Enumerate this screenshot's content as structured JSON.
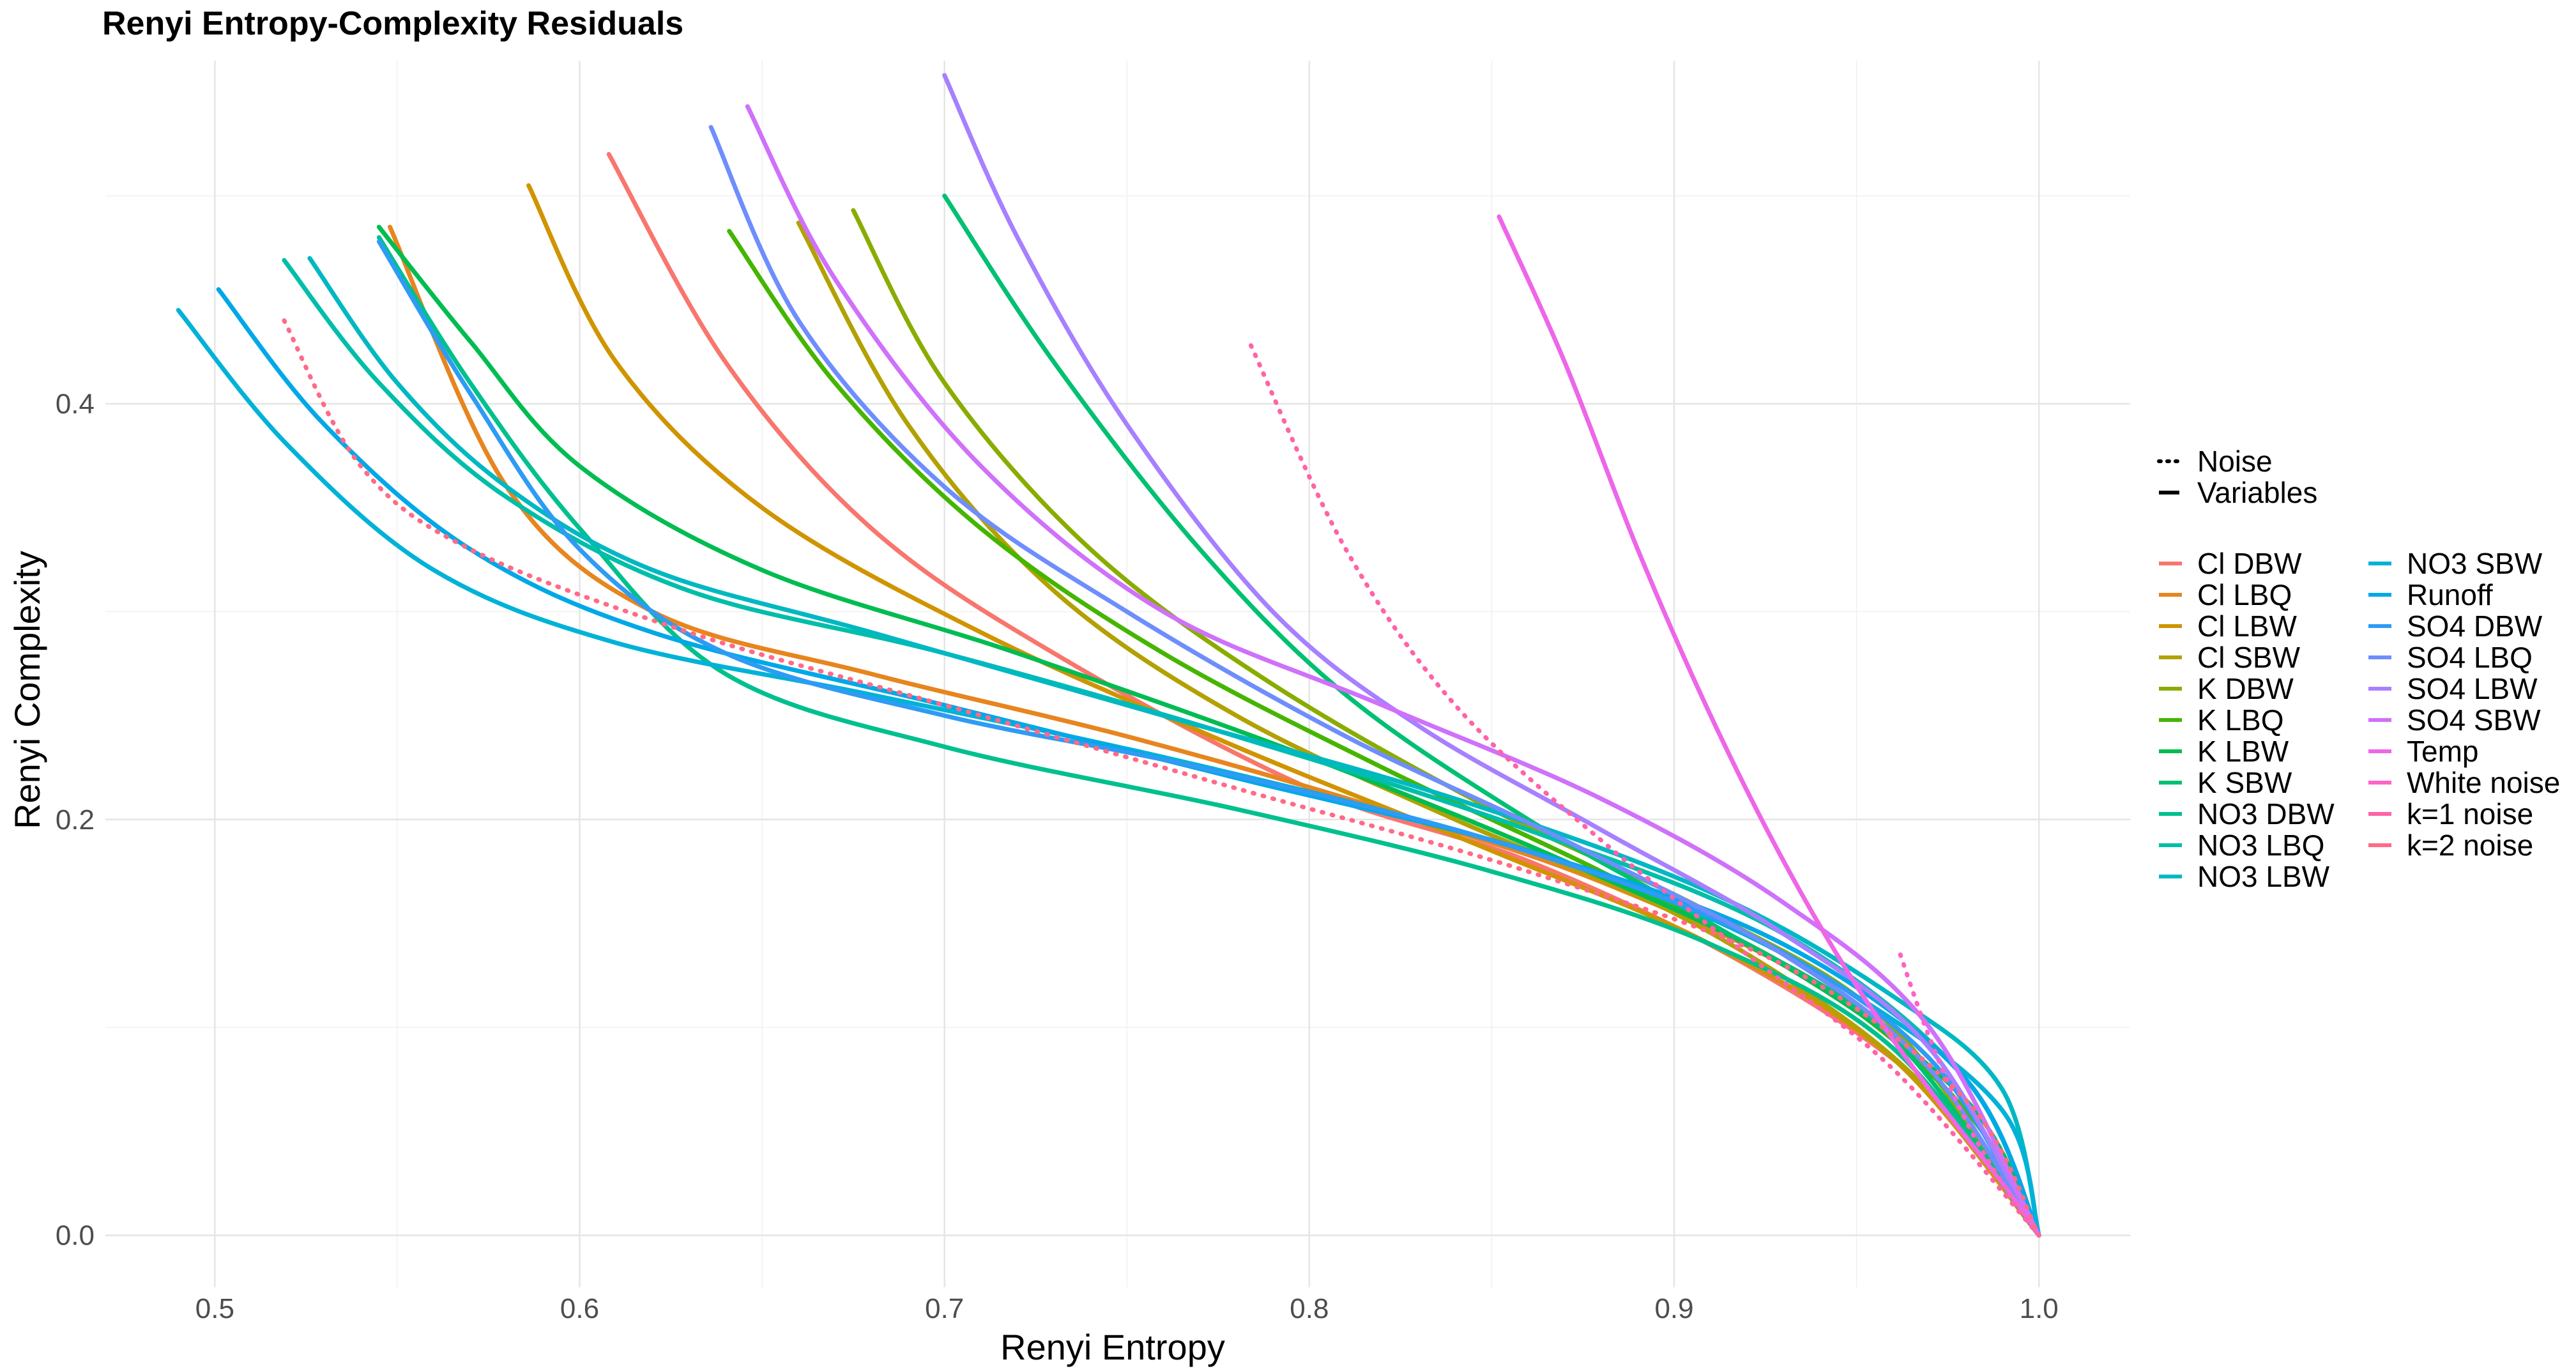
{
  "chart_data": {
    "type": "line",
    "title": "Renyi Entropy-Complexity Residuals",
    "xlabel": "Renyi Entropy",
    "ylabel": "Renyi Complexity",
    "xlim": [
      0.47,
      1.025
    ],
    "ylim": [
      -0.025,
      0.565
    ],
    "x_ticks": [
      0.5,
      0.6,
      0.7,
      0.8,
      0.9,
      1.0
    ],
    "x_tick_labels": [
      "0.5",
      "0.6",
      "0.7",
      "0.8",
      "0.9",
      "1.0"
    ],
    "y_ticks": [
      0.0,
      0.2,
      0.4
    ],
    "y_tick_labels": [
      "0.0",
      "0.2",
      "0.4"
    ],
    "grid": true,
    "linetype_legend": [
      {
        "label": "Noise",
        "style": "dotted"
      },
      {
        "label": "Variables",
        "style": "solid"
      }
    ],
    "series": [
      {
        "name": "Cl DBW",
        "color": "#F8766D",
        "style": "solid",
        "points": [
          [
            0.608,
            0.52
          ],
          [
            0.64,
            0.42
          ],
          [
            0.68,
            0.34
          ],
          [
            0.73,
            0.28
          ],
          [
            0.8,
            0.215
          ],
          [
            0.86,
            0.18
          ],
          [
            0.92,
            0.13
          ],
          [
            0.97,
            0.07
          ],
          [
            1.0,
            0.0
          ]
        ]
      },
      {
        "name": "Cl LBQ",
        "color": "#E7851E",
        "style": "solid",
        "points": [
          [
            0.548,
            0.485
          ],
          [
            0.58,
            0.36
          ],
          [
            0.62,
            0.3
          ],
          [
            0.68,
            0.27
          ],
          [
            0.75,
            0.24
          ],
          [
            0.82,
            0.205
          ],
          [
            0.88,
            0.17
          ],
          [
            0.94,
            0.12
          ],
          [
            0.98,
            0.06
          ],
          [
            1.0,
            0.0
          ]
        ]
      },
      {
        "name": "Cl LBW",
        "color": "#D09400",
        "style": "solid",
        "points": [
          [
            0.586,
            0.505
          ],
          [
            0.61,
            0.42
          ],
          [
            0.65,
            0.35
          ],
          [
            0.71,
            0.29
          ],
          [
            0.78,
            0.235
          ],
          [
            0.85,
            0.185
          ],
          [
            0.91,
            0.14
          ],
          [
            0.96,
            0.085
          ],
          [
            1.0,
            0.0
          ]
        ]
      },
      {
        "name": "Cl SBW",
        "color": "#B2A100",
        "style": "solid",
        "points": [
          [
            0.66,
            0.487
          ],
          [
            0.69,
            0.39
          ],
          [
            0.73,
            0.31
          ],
          [
            0.78,
            0.25
          ],
          [
            0.84,
            0.2
          ],
          [
            0.9,
            0.155
          ],
          [
            0.95,
            0.1
          ],
          [
            0.98,
            0.05
          ],
          [
            1.0,
            0.0
          ]
        ]
      },
      {
        "name": "K DBW",
        "color": "#89AC00",
        "style": "solid",
        "points": [
          [
            0.675,
            0.493
          ],
          [
            0.7,
            0.41
          ],
          [
            0.74,
            0.33
          ],
          [
            0.79,
            0.265
          ],
          [
            0.85,
            0.205
          ],
          [
            0.91,
            0.155
          ],
          [
            0.96,
            0.1
          ],
          [
            1.0,
            0.0
          ]
        ]
      },
      {
        "name": "K LBQ",
        "color": "#45B500",
        "style": "solid",
        "points": [
          [
            0.641,
            0.483
          ],
          [
            0.67,
            0.41
          ],
          [
            0.71,
            0.34
          ],
          [
            0.76,
            0.28
          ],
          [
            0.82,
            0.225
          ],
          [
            0.88,
            0.175
          ],
          [
            0.94,
            0.12
          ],
          [
            0.98,
            0.06
          ],
          [
            1.0,
            0.0
          ]
        ]
      },
      {
        "name": "K LBW",
        "color": "#00BC51",
        "style": "solid",
        "points": [
          [
            0.545,
            0.485
          ],
          [
            0.57,
            0.43
          ],
          [
            0.6,
            0.37
          ],
          [
            0.65,
            0.32
          ],
          [
            0.72,
            0.28
          ],
          [
            0.8,
            0.23
          ],
          [
            0.87,
            0.18
          ],
          [
            0.93,
            0.13
          ],
          [
            0.98,
            0.065
          ],
          [
            1.0,
            0.0
          ]
        ]
      },
      {
        "name": "K SBW",
        "color": "#00C071",
        "style": "solid",
        "points": [
          [
            0.7,
            0.5
          ],
          [
            0.73,
            0.42
          ],
          [
            0.77,
            0.33
          ],
          [
            0.81,
            0.26
          ],
          [
            0.86,
            0.2
          ],
          [
            0.91,
            0.15
          ],
          [
            0.96,
            0.095
          ],
          [
            1.0,
            0.0
          ]
        ]
      },
      {
        "name": "NO3 DBW",
        "color": "#00C08E",
        "style": "solid",
        "points": [
          [
            0.545,
            0.48
          ],
          [
            0.57,
            0.41
          ],
          [
            0.6,
            0.34
          ],
          [
            0.64,
            0.27
          ],
          [
            0.7,
            0.235
          ],
          [
            0.78,
            0.205
          ],
          [
            0.85,
            0.175
          ],
          [
            0.91,
            0.14
          ],
          [
            0.96,
            0.09
          ],
          [
            1.0,
            0.0
          ]
        ]
      },
      {
        "name": "NO3 LBQ",
        "color": "#00BEA9",
        "style": "solid",
        "points": [
          [
            0.519,
            0.469
          ],
          [
            0.545,
            0.41
          ],
          [
            0.58,
            0.355
          ],
          [
            0.63,
            0.31
          ],
          [
            0.7,
            0.28
          ],
          [
            0.78,
            0.24
          ],
          [
            0.86,
            0.195
          ],
          [
            0.93,
            0.145
          ],
          [
            0.98,
            0.075
          ],
          [
            1.0,
            0.0
          ]
        ]
      },
      {
        "name": "NO3 LBW",
        "color": "#00B8C2",
        "style": "solid",
        "points": [
          [
            0.526,
            0.47
          ],
          [
            0.55,
            0.41
          ],
          [
            0.58,
            0.36
          ],
          [
            0.62,
            0.32
          ],
          [
            0.68,
            0.29
          ],
          [
            0.76,
            0.25
          ],
          [
            0.84,
            0.21
          ],
          [
            0.91,
            0.165
          ],
          [
            0.96,
            0.115
          ],
          [
            0.99,
            0.07
          ],
          [
            1.0,
            0.0
          ]
        ]
      },
      {
        "name": "NO3 SBW",
        "color": "#00B2D7",
        "style": "solid",
        "points": [
          [
            0.49,
            0.445
          ],
          [
            0.52,
            0.38
          ],
          [
            0.56,
            0.32
          ],
          [
            0.61,
            0.285
          ],
          [
            0.68,
            0.26
          ],
          [
            0.76,
            0.23
          ],
          [
            0.84,
            0.195
          ],
          [
            0.9,
            0.16
          ],
          [
            0.95,
            0.115
          ],
          [
            0.99,
            0.06
          ],
          [
            1.0,
            0.0
          ]
        ]
      },
      {
        "name": "Runoff",
        "color": "#00A8E7",
        "style": "solid",
        "points": [
          [
            0.501,
            0.455
          ],
          [
            0.53,
            0.39
          ],
          [
            0.57,
            0.33
          ],
          [
            0.62,
            0.29
          ],
          [
            0.7,
            0.255
          ],
          [
            0.78,
            0.22
          ],
          [
            0.86,
            0.185
          ],
          [
            0.93,
            0.14
          ],
          [
            0.98,
            0.075
          ],
          [
            1.0,
            0.0
          ]
        ]
      },
      {
        "name": "SO4 DBW",
        "color": "#2E9BF4",
        "style": "solid",
        "points": [
          [
            0.545,
            0.478
          ],
          [
            0.57,
            0.405
          ],
          [
            0.6,
            0.33
          ],
          [
            0.64,
            0.28
          ],
          [
            0.7,
            0.25
          ],
          [
            0.77,
            0.225
          ],
          [
            0.85,
            0.19
          ],
          [
            0.92,
            0.145
          ],
          [
            0.97,
            0.085
          ],
          [
            1.0,
            0.0
          ]
        ]
      },
      {
        "name": "SO4 LBQ",
        "color": "#6E8EFD",
        "style": "solid",
        "points": [
          [
            0.636,
            0.533
          ],
          [
            0.66,
            0.44
          ],
          [
            0.7,
            0.36
          ],
          [
            0.75,
            0.3
          ],
          [
            0.81,
            0.24
          ],
          [
            0.87,
            0.19
          ],
          [
            0.93,
            0.135
          ],
          [
            0.97,
            0.08
          ],
          [
            1.0,
            0.0
          ]
        ]
      },
      {
        "name": "SO4 LBW",
        "color": "#A780FF",
        "style": "solid",
        "points": [
          [
            0.7,
            0.558
          ],
          [
            0.72,
            0.48
          ],
          [
            0.75,
            0.39
          ],
          [
            0.79,
            0.3
          ],
          [
            0.83,
            0.245
          ],
          [
            0.88,
            0.195
          ],
          [
            0.93,
            0.145
          ],
          [
            0.97,
            0.09
          ],
          [
            1.0,
            0.0
          ]
        ]
      },
      {
        "name": "SO4 SBW",
        "color": "#CF71FA",
        "style": "solid",
        "points": [
          [
            0.646,
            0.543
          ],
          [
            0.67,
            0.46
          ],
          [
            0.71,
            0.37
          ],
          [
            0.76,
            0.3
          ],
          [
            0.82,
            0.255
          ],
          [
            0.88,
            0.21
          ],
          [
            0.93,
            0.16
          ],
          [
            0.97,
            0.1
          ],
          [
            1.0,
            0.0
          ]
        ]
      },
      {
        "name": "Temp",
        "color": "#EE66E8",
        "style": "solid",
        "points": [
          [
            0.852,
            0.49
          ],
          [
            0.87,
            0.42
          ],
          [
            0.89,
            0.33
          ],
          [
            0.91,
            0.25
          ],
          [
            0.93,
            0.18
          ],
          [
            0.95,
            0.12
          ],
          [
            0.97,
            0.07
          ],
          [
            0.99,
            0.025
          ],
          [
            1.0,
            0.0
          ]
        ]
      },
      {
        "name": "White noise",
        "color": "#FF62C6",
        "style": "dotted",
        "points": [
          [
            0.962,
            0.135
          ],
          [
            0.97,
            0.095
          ],
          [
            0.98,
            0.055
          ],
          [
            0.99,
            0.025
          ],
          [
            1.0,
            0.0
          ]
        ]
      },
      {
        "name": "k=1 noise",
        "color": "#FF63A6",
        "style": "dotted",
        "points": [
          [
            0.784,
            0.428
          ],
          [
            0.81,
            0.33
          ],
          [
            0.84,
            0.255
          ],
          [
            0.88,
            0.19
          ],
          [
            0.92,
            0.135
          ],
          [
            0.96,
            0.08
          ],
          [
            1.0,
            0.0
          ]
        ]
      },
      {
        "name": "k=2 noise",
        "color": "#FF6A87",
        "style": "dotted",
        "points": [
          [
            0.519,
            0.44
          ],
          [
            0.54,
            0.37
          ],
          [
            0.57,
            0.33
          ],
          [
            0.63,
            0.29
          ],
          [
            0.7,
            0.255
          ],
          [
            0.78,
            0.215
          ],
          [
            0.86,
            0.175
          ],
          [
            0.93,
            0.13
          ],
          [
            0.98,
            0.065
          ],
          [
            1.0,
            0.0
          ]
        ]
      }
    ]
  }
}
